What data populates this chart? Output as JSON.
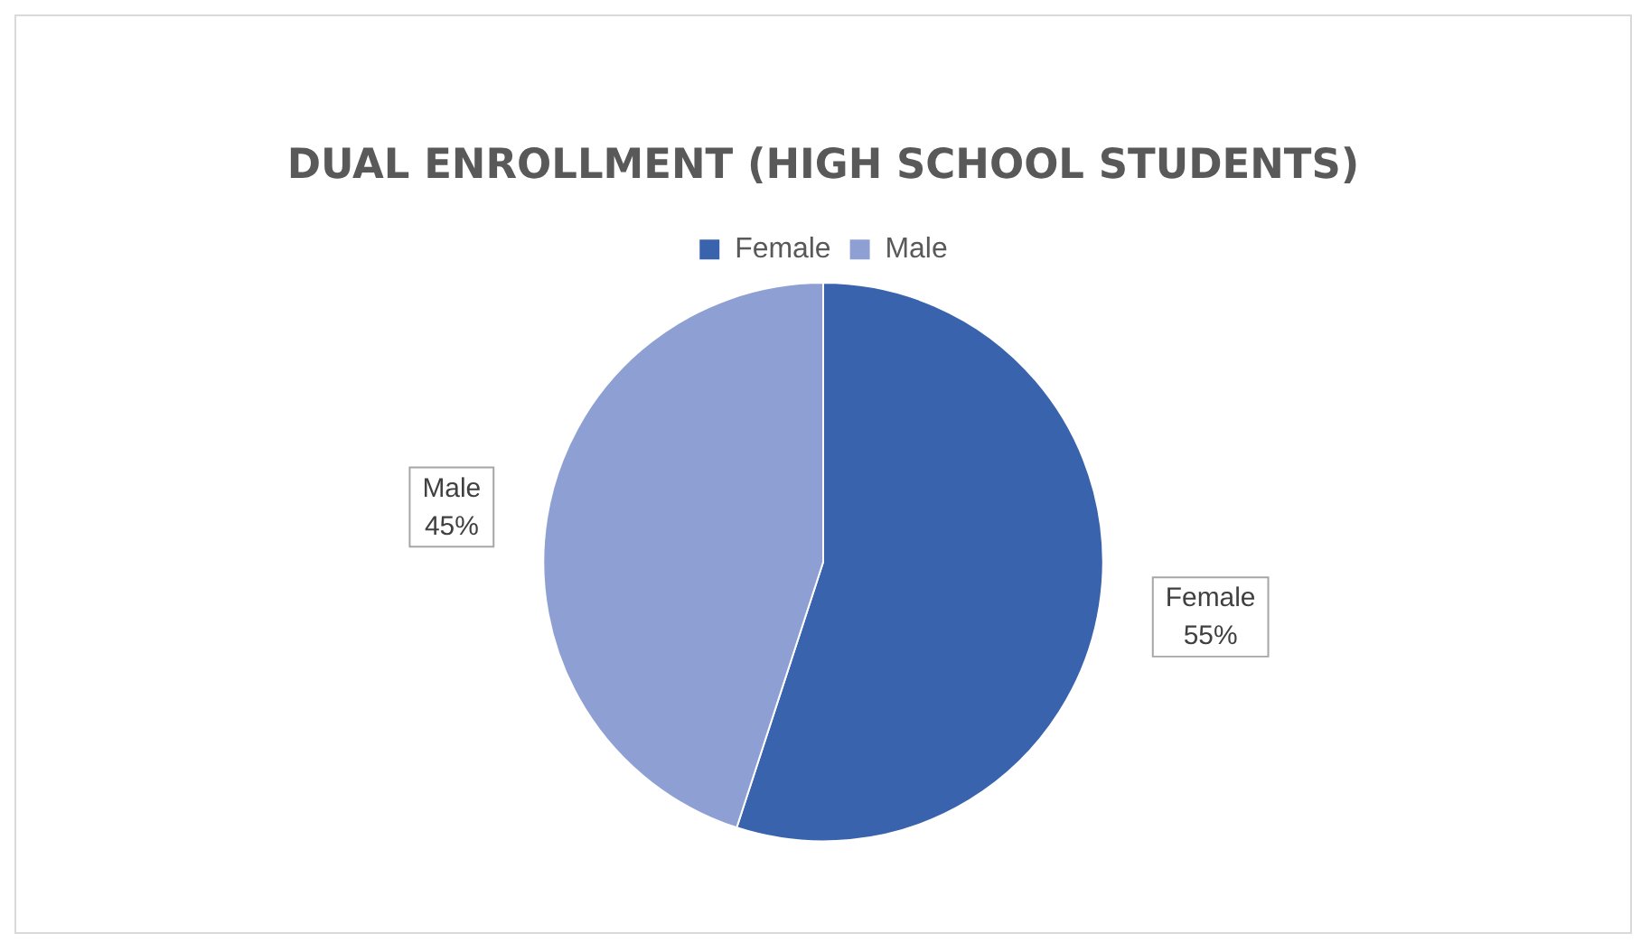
{
  "chart_data": {
    "type": "pie",
    "title": "DUAL ENROLLMENT (HIGH SCHOOL STUDENTS)",
    "categories": [
      "Female",
      "Male"
    ],
    "values": [
      55,
      45
    ],
    "colors": [
      "#3a63ad",
      "#8ea0d3"
    ],
    "legend": "top",
    "value_labels": [
      "55%",
      "45%"
    ]
  }
}
